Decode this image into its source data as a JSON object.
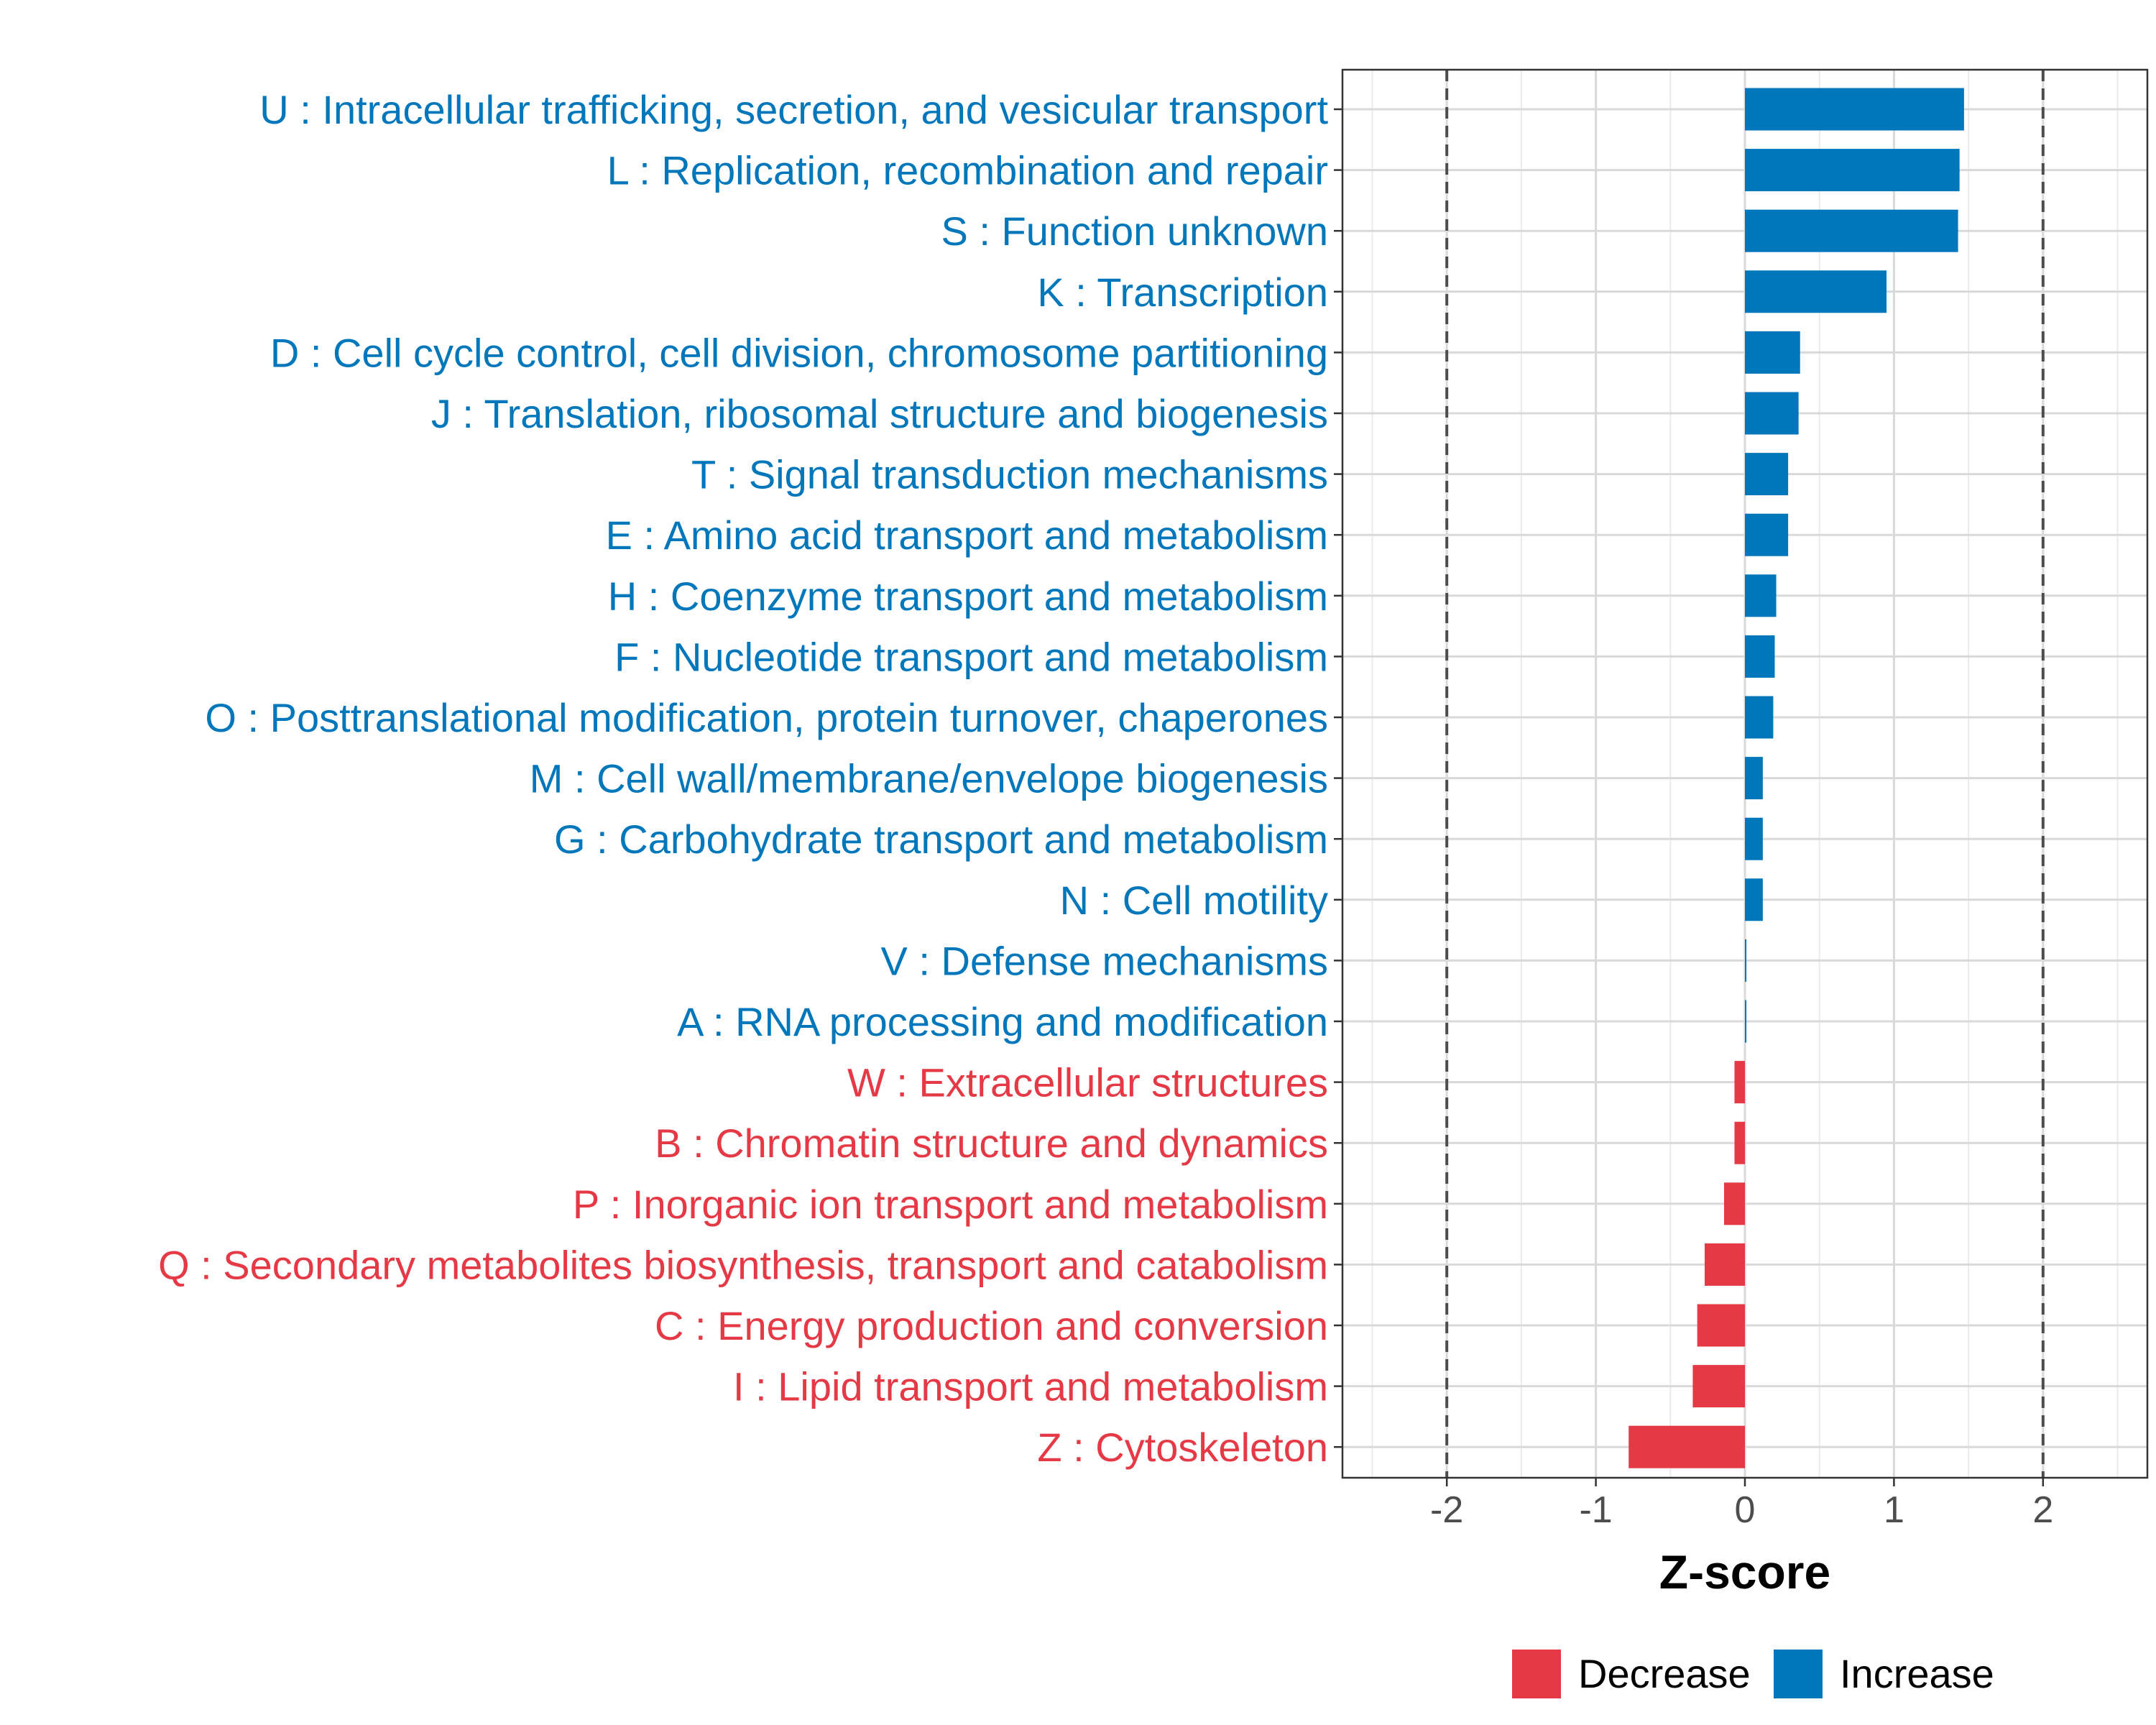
{
  "chart_data": {
    "type": "bar",
    "orientation": "horizontal",
    "xlabel": "Z-score",
    "xlim": [
      -2.7,
      2.7
    ],
    "x_ticks": [
      -2,
      -1,
      0,
      1,
      2
    ],
    "x_tick_labels": [
      "-2",
      "-1",
      "0",
      "1",
      "2"
    ],
    "reference_lines": [
      -2,
      2
    ],
    "grid": true,
    "legend_position": "bottom",
    "colors": {
      "Decrease": "#E63946",
      "Increase": "#0077BB"
    },
    "legend": [
      {
        "label": "Decrease",
        "color": "#E63946"
      },
      {
        "label": "Increase",
        "color": "#0077BB"
      }
    ],
    "categories": [
      "U : Intracellular trafficking, secretion, and vesicular transport",
      "L : Replication, recombination and repair",
      "S : Function unknown",
      "K : Transcription",
      "D : Cell cycle control, cell division, chromosome partitioning",
      "J : Translation, ribosomal structure and biogenesis",
      "T : Signal transduction mechanisms",
      "E : Amino acid transport and metabolism",
      "H : Coenzyme transport and metabolism",
      "F : Nucleotide transport and metabolism",
      "O : Posttranslational modification, protein turnover, chaperones",
      "M : Cell wall/membrane/envelope biogenesis",
      "G : Carbohydrate transport and metabolism",
      "N : Cell motility",
      "V : Defense mechanisms",
      "A : RNA processing and modification",
      "W : Extracellular structures",
      "B : Chromatin structure and dynamics",
      "P : Inorganic ion transport and metabolism",
      "Q : Secondary metabolites biosynthesis, transport and catabolism",
      "C : Energy production and conversion",
      "I : Lipid transport and metabolism",
      "Z : Cytoskeleton"
    ],
    "values": [
      1.47,
      1.44,
      1.43,
      0.95,
      0.37,
      0.36,
      0.29,
      0.29,
      0.21,
      0.2,
      0.19,
      0.12,
      0.12,
      0.12,
      0.01,
      0.01,
      -0.07,
      -0.07,
      -0.14,
      -0.27,
      -0.32,
      -0.35,
      -0.78
    ],
    "groups": [
      "Increase",
      "Increase",
      "Increase",
      "Increase",
      "Increase",
      "Increase",
      "Increase",
      "Increase",
      "Increase",
      "Increase",
      "Increase",
      "Increase",
      "Increase",
      "Increase",
      "Increase",
      "Increase",
      "Decrease",
      "Decrease",
      "Decrease",
      "Decrease",
      "Decrease",
      "Decrease",
      "Decrease"
    ]
  }
}
